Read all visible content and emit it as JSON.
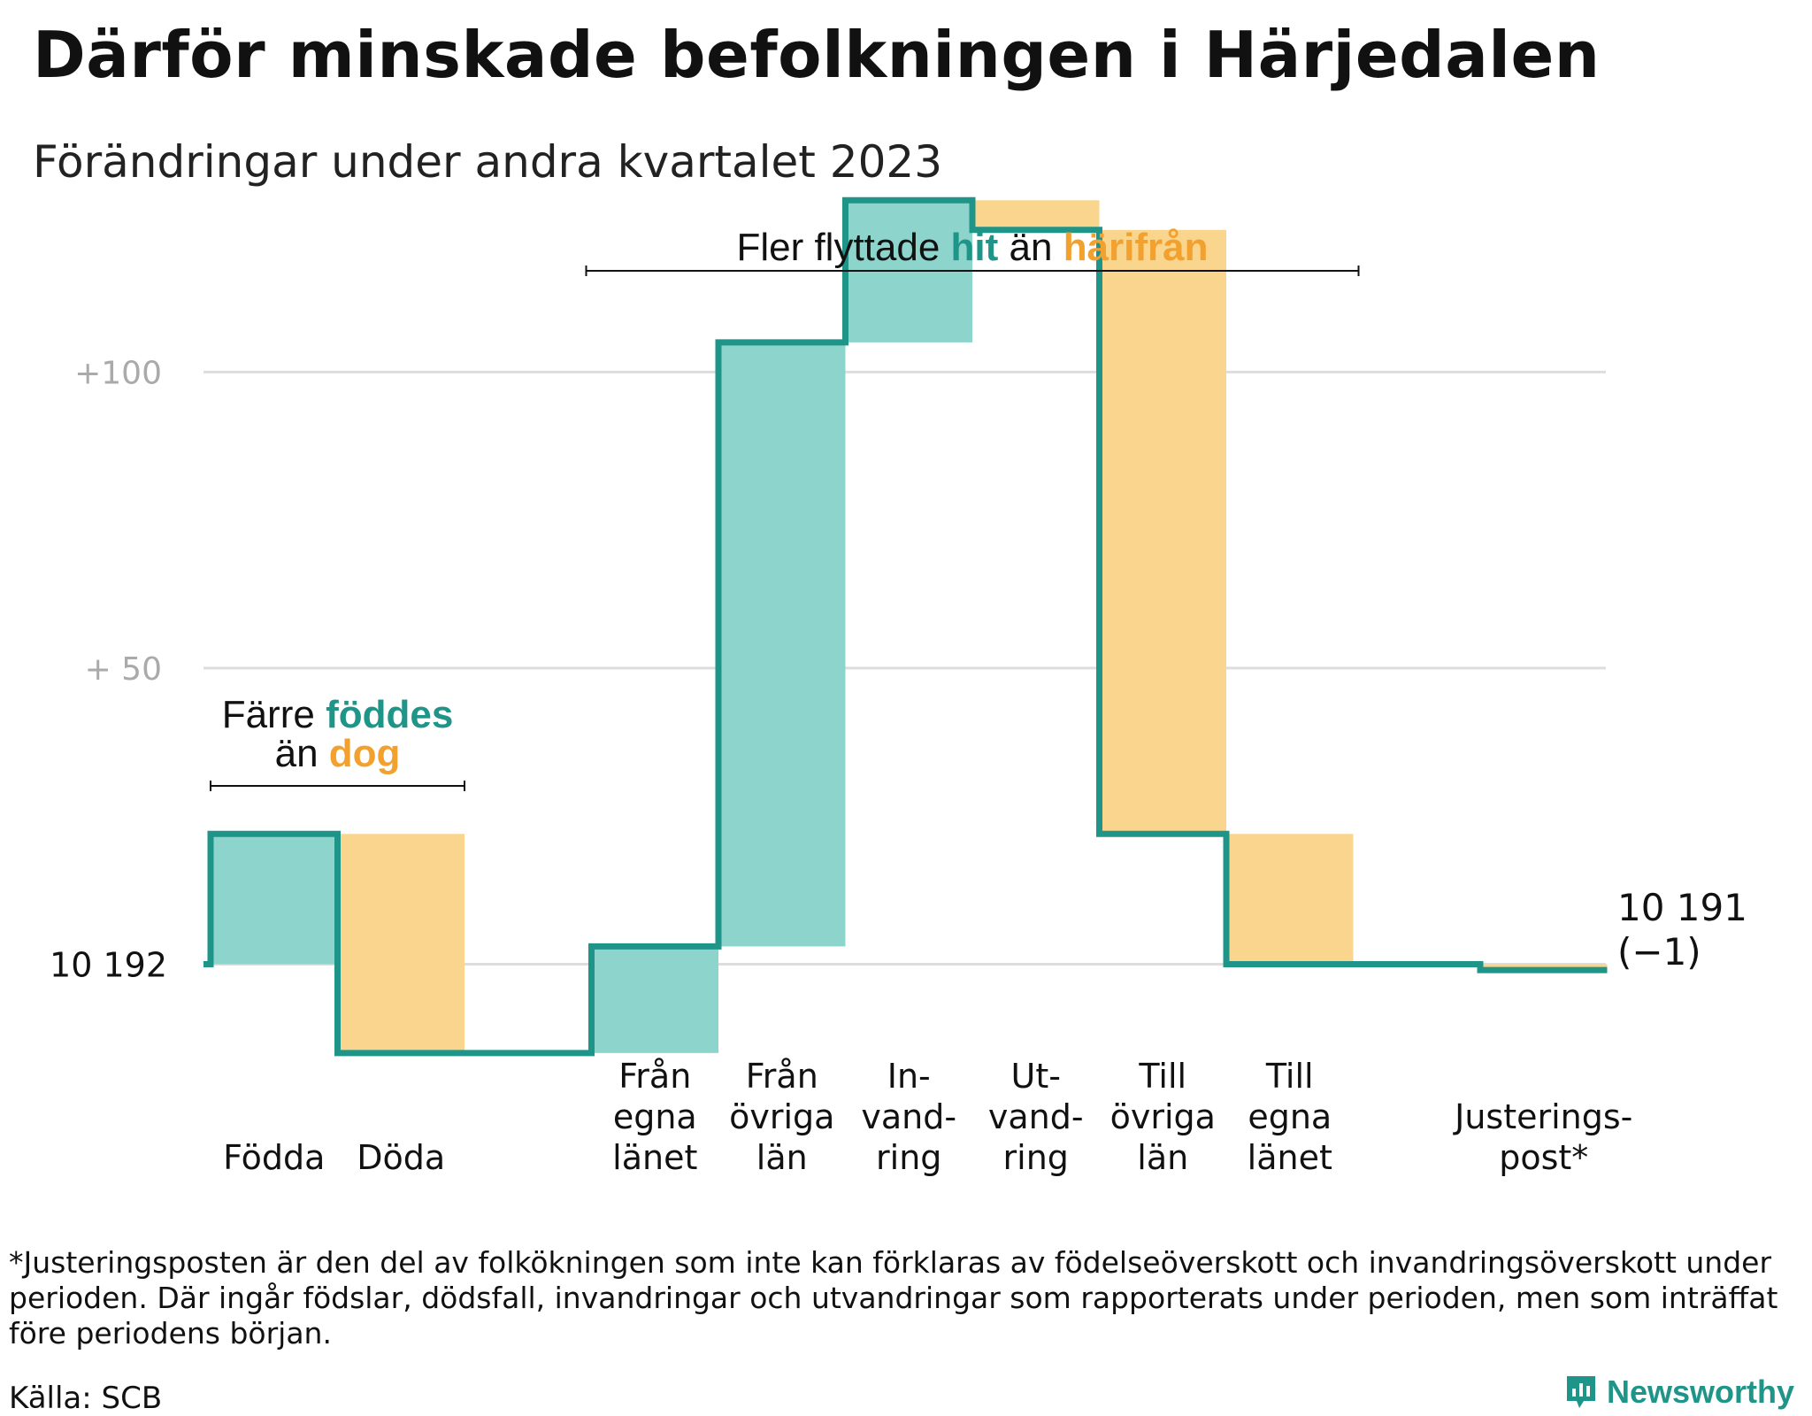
{
  "title": "Därför minskade befolkningen i Härjedalen",
  "subtitle": "Förändringar under andra kvartalet 2023",
  "colors": {
    "increase": "#8dd5cc",
    "decrease": "#fad58e",
    "line": "#1f9488",
    "highlight_hit": "#1f9488",
    "highlight_harifran": "#f2a12e",
    "grid": "#dddddd",
    "tick": "#aaaaaa"
  },
  "chart_data": {
    "type": "waterfall",
    "start_value": 10192,
    "start_label": "10  192",
    "end_label": "10 191",
    "end_change_label": "(−1)",
    "ylim": [
      10171,
      10320
    ],
    "yticks": [
      {
        "value": 10242,
        "label": "+  50"
      },
      {
        "value": 10292,
        "label": "+100"
      }
    ],
    "steps": [
      {
        "label": [
          "Födda"
        ],
        "change": 22
      },
      {
        "label": [
          "Döda"
        ],
        "change": -37
      },
      {
        "label": [],
        "change": 0
      },
      {
        "label": [
          "Från",
          "egna",
          "länet"
        ],
        "change": 18
      },
      {
        "label": [
          "Från",
          "övriga",
          "län"
        ],
        "change": 102
      },
      {
        "label": [
          "In-",
          "vand-",
          "ring"
        ],
        "change": 24
      },
      {
        "label": [
          "Ut-",
          "vand-",
          "ring"
        ],
        "change": -5
      },
      {
        "label": [
          "Till",
          "övriga",
          "län"
        ],
        "change": -102
      },
      {
        "label": [
          "Till",
          "egna",
          "länet"
        ],
        "change": -22
      },
      {
        "label": [],
        "change": 0
      },
      {
        "label": [
          "Justerings-",
          "post*"
        ],
        "change": -1
      }
    ],
    "annotations": {
      "births": {
        "line1_plain": "Färre",
        "line1_highlight": "föddes",
        "line2_plain": "än",
        "line2_highlight": "dog"
      },
      "migration": {
        "plain1": "Fler flyttade",
        "highlight1": "hit",
        "plain2": "än",
        "highlight2": "härifrån"
      }
    }
  },
  "footnote": "*Justeringsposten är den del av folkökningen som inte kan förklaras av födelseöverskott och invandringsöverskott under perioden. Där ingår födslar, dödsfall, invandringar och utvandringar som rapporterats under perioden, men som inträffat före periodens början.",
  "source": "Källa: SCB",
  "brand": {
    "name": "Newsworthy",
    "icon": "newsworthy-logo-icon"
  }
}
